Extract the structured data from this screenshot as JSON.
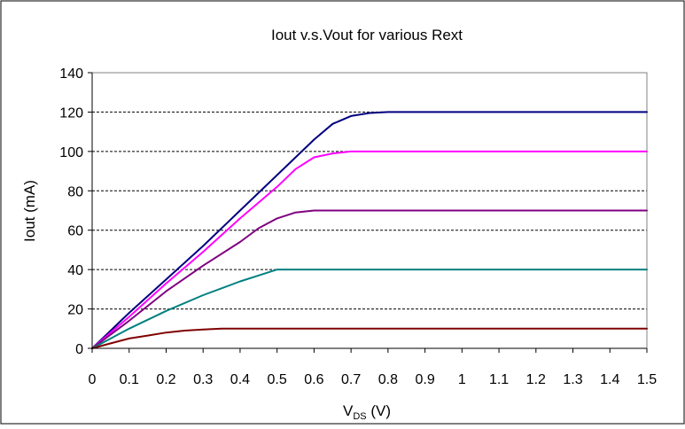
{
  "chart_data": {
    "type": "line",
    "title": "Iout v.s.Vout for various Rext",
    "xlabel_main": "V",
    "xlabel_sub": "DS",
    "xlabel_unit": " (V)",
    "ylabel": "Iout (mA)",
    "xlim": [
      0,
      1.5
    ],
    "ylim": [
      0,
      140
    ],
    "x_ticks": [
      "0",
      "0.1",
      "0.2",
      "0.3",
      "0.4",
      "0.5",
      "0.6",
      "0.7",
      "0.8",
      "0.9",
      "1",
      "1.1",
      "1.2",
      "1.3",
      "1.4",
      "1.5"
    ],
    "y_ticks": [
      "0",
      "20",
      "40",
      "60",
      "80",
      "100",
      "120",
      "140"
    ],
    "grid": "horizontal dashed",
    "series": [
      {
        "color": "#000080",
        "points": [
          [
            0,
            0
          ],
          [
            0.1,
            18
          ],
          [
            0.2,
            35
          ],
          [
            0.3,
            52
          ],
          [
            0.4,
            70
          ],
          [
            0.5,
            88
          ],
          [
            0.6,
            106
          ],
          [
            0.65,
            114
          ],
          [
            0.7,
            118
          ],
          [
            0.75,
            119.5
          ],
          [
            0.8,
            120
          ],
          [
            0.85,
            120
          ],
          [
            0.9,
            120
          ],
          [
            1.0,
            120
          ],
          [
            1.1,
            120
          ],
          [
            1.2,
            120
          ],
          [
            1.3,
            120
          ],
          [
            1.4,
            120
          ],
          [
            1.5,
            120
          ]
        ]
      },
      {
        "color": "#ff00ff",
        "points": [
          [
            0,
            0
          ],
          [
            0.1,
            16
          ],
          [
            0.2,
            33
          ],
          [
            0.3,
            49
          ],
          [
            0.4,
            66
          ],
          [
            0.5,
            82
          ],
          [
            0.55,
            91
          ],
          [
            0.6,
            97
          ],
          [
            0.65,
            99
          ],
          [
            0.7,
            100
          ],
          [
            0.8,
            100
          ],
          [
            0.9,
            100
          ],
          [
            1.0,
            100
          ],
          [
            1.1,
            100
          ],
          [
            1.2,
            100
          ],
          [
            1.3,
            100
          ],
          [
            1.4,
            100
          ],
          [
            1.5,
            100
          ]
        ]
      },
      {
        "color": "#800080",
        "points": [
          [
            0,
            0
          ],
          [
            0.1,
            14
          ],
          [
            0.2,
            29
          ],
          [
            0.3,
            42
          ],
          [
            0.4,
            54
          ],
          [
            0.45,
            61
          ],
          [
            0.5,
            66
          ],
          [
            0.55,
            69
          ],
          [
            0.6,
            70
          ],
          [
            0.7,
            70
          ],
          [
            0.8,
            70
          ],
          [
            0.9,
            70
          ],
          [
            1.0,
            70
          ],
          [
            1.1,
            70
          ],
          [
            1.2,
            70
          ],
          [
            1.3,
            70
          ],
          [
            1.4,
            70
          ],
          [
            1.5,
            70
          ]
        ]
      },
      {
        "color": "#008080",
        "points": [
          [
            0,
            0
          ],
          [
            0.1,
            10
          ],
          [
            0.2,
            19
          ],
          [
            0.3,
            27
          ],
          [
            0.4,
            34
          ],
          [
            0.45,
            37
          ],
          [
            0.5,
            40
          ],
          [
            0.55,
            40
          ],
          [
            0.6,
            40
          ],
          [
            0.7,
            40
          ],
          [
            0.8,
            40
          ],
          [
            0.9,
            40
          ],
          [
            1.0,
            40
          ],
          [
            1.1,
            40
          ],
          [
            1.2,
            40
          ],
          [
            1.3,
            40
          ],
          [
            1.4,
            40
          ],
          [
            1.5,
            40
          ]
        ]
      },
      {
        "color": "#800000",
        "points": [
          [
            0,
            0
          ],
          [
            0.05,
            2.5
          ],
          [
            0.1,
            5
          ],
          [
            0.15,
            6.5
          ],
          [
            0.2,
            8
          ],
          [
            0.25,
            9
          ],
          [
            0.3,
            9.6
          ],
          [
            0.35,
            10
          ],
          [
            0.4,
            10
          ],
          [
            0.5,
            10
          ],
          [
            0.7,
            10
          ],
          [
            0.9,
            10
          ],
          [
            1.1,
            10
          ],
          [
            1.3,
            10
          ],
          [
            1.5,
            10
          ]
        ]
      }
    ]
  }
}
